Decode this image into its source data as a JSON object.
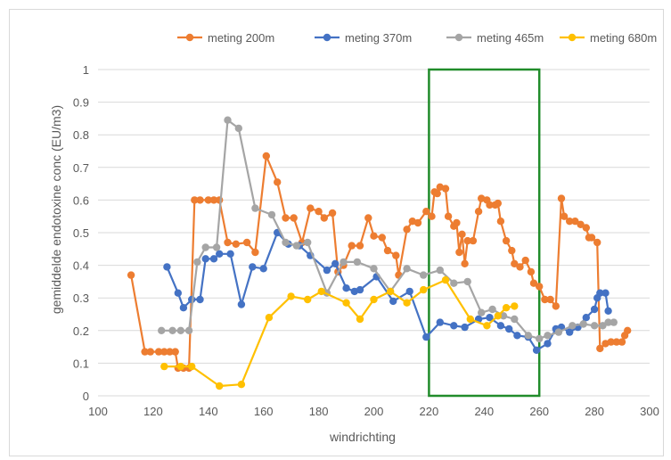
{
  "chart_data": {
    "type": "line",
    "title": "",
    "xlabel": "windrichting",
    "ylabel": "gemiddelde endotoxine conc (EU/m3)",
    "xlim": [
      100,
      300
    ],
    "ylim": [
      0,
      1
    ],
    "xticks": [
      100,
      120,
      140,
      160,
      180,
      200,
      220,
      240,
      260,
      280,
      300
    ],
    "yticks": [
      0,
      0.1,
      0.2,
      0.3,
      0.4,
      0.5,
      0.6,
      0.7,
      0.8,
      0.9,
      1
    ],
    "xtick_labels": [
      "100",
      "120",
      "140",
      "160",
      "180",
      "200",
      "220",
      "240",
      "260",
      "280",
      "300"
    ],
    "ytick_labels": [
      "0",
      "0.1",
      "0.2",
      "0.3",
      "0.4",
      "0.5",
      "0.6",
      "0.7",
      "0.8",
      "0.9",
      "1"
    ],
    "grid": true,
    "legend_position": "top",
    "highlight_box": {
      "x": [
        220,
        260
      ],
      "y": [
        0,
        1
      ],
      "color": "#218c2b"
    },
    "series": [
      {
        "name": "meting 200m",
        "color": "#ed7d31",
        "points": [
          [
            112,
            0.37
          ],
          [
            117,
            0.135
          ],
          [
            119,
            0.135
          ],
          [
            122,
            0.135
          ],
          [
            124,
            0.135
          ],
          [
            126,
            0.135
          ],
          [
            128,
            0.135
          ],
          [
            129,
            0.085
          ],
          [
            131,
            0.085
          ],
          [
            133,
            0.085
          ],
          [
            135,
            0.6
          ],
          [
            137,
            0.6
          ],
          [
            140,
            0.6
          ],
          [
            142,
            0.6
          ],
          [
            144,
            0.6
          ],
          [
            147,
            0.47
          ],
          [
            150,
            0.465
          ],
          [
            154,
            0.47
          ],
          [
            157,
            0.44
          ],
          [
            161,
            0.735
          ],
          [
            165,
            0.655
          ],
          [
            168,
            0.545
          ],
          [
            171,
            0.545
          ],
          [
            174,
            0.47
          ],
          [
            177,
            0.575
          ],
          [
            180,
            0.565
          ],
          [
            182,
            0.545
          ],
          [
            185,
            0.56
          ],
          [
            187,
            0.38
          ],
          [
            189,
            0.4
          ],
          [
            192,
            0.46
          ],
          [
            195,
            0.46
          ],
          [
            198,
            0.545
          ],
          [
            200,
            0.49
          ],
          [
            203,
            0.485
          ],
          [
            205,
            0.445
          ],
          [
            208,
            0.43
          ],
          [
            209,
            0.37
          ],
          [
            212,
            0.51
          ],
          [
            214,
            0.535
          ],
          [
            216,
            0.53
          ],
          [
            219,
            0.565
          ],
          [
            221,
            0.55
          ],
          [
            222,
            0.625
          ],
          [
            223,
            0.62
          ],
          [
            224,
            0.64
          ],
          [
            226,
            0.635
          ],
          [
            227,
            0.55
          ],
          [
            229,
            0.52
          ],
          [
            230,
            0.53
          ],
          [
            231,
            0.44
          ],
          [
            232,
            0.495
          ],
          [
            233,
            0.405
          ],
          [
            234,
            0.475
          ],
          [
            236,
            0.475
          ],
          [
            238,
            0.565
          ],
          [
            239,
            0.605
          ],
          [
            241,
            0.6
          ],
          [
            242,
            0.585
          ],
          [
            244,
            0.585
          ],
          [
            245,
            0.59
          ],
          [
            246,
            0.535
          ],
          [
            248,
            0.475
          ],
          [
            250,
            0.445
          ],
          [
            251,
            0.405
          ],
          [
            253,
            0.395
          ],
          [
            255,
            0.415
          ],
          [
            257,
            0.38
          ],
          [
            258,
            0.345
          ],
          [
            260,
            0.335
          ],
          [
            262,
            0.295
          ],
          [
            264,
            0.295
          ],
          [
            266,
            0.275
          ],
          [
            268,
            0.605
          ],
          [
            269,
            0.55
          ],
          [
            271,
            0.535
          ],
          [
            273,
            0.535
          ],
          [
            275,
            0.525
          ],
          [
            277,
            0.515
          ],
          [
            278,
            0.485
          ],
          [
            279,
            0.485
          ],
          [
            281,
            0.47
          ],
          [
            282,
            0.145
          ],
          [
            284,
            0.16
          ],
          [
            286,
            0.165
          ],
          [
            288,
            0.165
          ],
          [
            290,
            0.165
          ],
          [
            291,
            0.185
          ],
          [
            292,
            0.2
          ]
        ]
      },
      {
        "name": "meting 370m",
        "color": "#4472c4",
        "points": [
          [
            125,
            0.395
          ],
          [
            129,
            0.315
          ],
          [
            131,
            0.27
          ],
          [
            134,
            0.295
          ],
          [
            137,
            0.295
          ],
          [
            139,
            0.42
          ],
          [
            142,
            0.42
          ],
          [
            144,
            0.435
          ],
          [
            148,
            0.435
          ],
          [
            152,
            0.28
          ],
          [
            156,
            0.395
          ],
          [
            160,
            0.39
          ],
          [
            165,
            0.5
          ],
          [
            169,
            0.465
          ],
          [
            173,
            0.46
          ],
          [
            177,
            0.43
          ],
          [
            183,
            0.385
          ],
          [
            186,
            0.405
          ],
          [
            190,
            0.33
          ],
          [
            193,
            0.32
          ],
          [
            195,
            0.325
          ],
          [
            201,
            0.365
          ],
          [
            207,
            0.29
          ],
          [
            213,
            0.32
          ],
          [
            219,
            0.18
          ],
          [
            224,
            0.225
          ],
          [
            229,
            0.215
          ],
          [
            233,
            0.21
          ],
          [
            238,
            0.235
          ],
          [
            242,
            0.24
          ],
          [
            246,
            0.215
          ],
          [
            249,
            0.205
          ],
          [
            252,
            0.185
          ],
          [
            256,
            0.18
          ],
          [
            259,
            0.14
          ],
          [
            263,
            0.16
          ],
          [
            266,
            0.205
          ],
          [
            268,
            0.21
          ],
          [
            271,
            0.195
          ],
          [
            274,
            0.21
          ],
          [
            277,
            0.24
          ],
          [
            280,
            0.265
          ],
          [
            281,
            0.3
          ],
          [
            282,
            0.315
          ],
          [
            284,
            0.315
          ],
          [
            285,
            0.26
          ]
        ]
      },
      {
        "name": "meting 465m",
        "color": "#a5a5a5",
        "points": [
          [
            123,
            0.2
          ],
          [
            127,
            0.2
          ],
          [
            130,
            0.2
          ],
          [
            133,
            0.2
          ],
          [
            136,
            0.41
          ],
          [
            139,
            0.455
          ],
          [
            143,
            0.455
          ],
          [
            147,
            0.845
          ],
          [
            151,
            0.82
          ],
          [
            157,
            0.575
          ],
          [
            163,
            0.555
          ],
          [
            168,
            0.47
          ],
          [
            172,
            0.46
          ],
          [
            176,
            0.47
          ],
          [
            183,
            0.315
          ],
          [
            189,
            0.41
          ],
          [
            194,
            0.41
          ],
          [
            200,
            0.39
          ],
          [
            206,
            0.32
          ],
          [
            212,
            0.39
          ],
          [
            218,
            0.37
          ],
          [
            224,
            0.385
          ],
          [
            229,
            0.345
          ],
          [
            234,
            0.35
          ],
          [
            239,
            0.255
          ],
          [
            243,
            0.265
          ],
          [
            247,
            0.245
          ],
          [
            251,
            0.235
          ],
          [
            256,
            0.185
          ],
          [
            260,
            0.175
          ],
          [
            263,
            0.185
          ],
          [
            267,
            0.195
          ],
          [
            272,
            0.215
          ],
          [
            276,
            0.22
          ],
          [
            280,
            0.215
          ],
          [
            283,
            0.215
          ],
          [
            285,
            0.225
          ],
          [
            287,
            0.225
          ]
        ]
      },
      {
        "name": "meting 680m",
        "color": "#ffc000",
        "points": [
          [
            124,
            0.09
          ],
          [
            130,
            0.09
          ],
          [
            134,
            0.09
          ],
          [
            144,
            0.03
          ],
          [
            152,
            0.035
          ],
          [
            162,
            0.24
          ],
          [
            170,
            0.305
          ],
          [
            176,
            0.295
          ],
          [
            181,
            0.32
          ],
          [
            190,
            0.285
          ],
          [
            195,
            0.235
          ],
          [
            200,
            0.295
          ],
          [
            206,
            0.32
          ],
          [
            212,
            0.285
          ],
          [
            218,
            0.325
          ],
          [
            226,
            0.355
          ],
          [
            235,
            0.235
          ],
          [
            241,
            0.215
          ],
          [
            245,
            0.245
          ],
          [
            248,
            0.27
          ],
          [
            251,
            0.275
          ]
        ]
      }
    ]
  }
}
